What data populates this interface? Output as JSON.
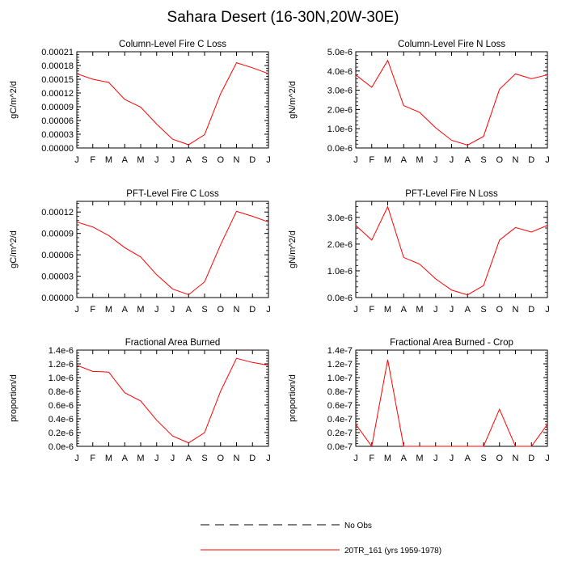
{
  "title": "Sahara Desert (16-30N,20W-30E)",
  "colors": {
    "series": "#ff0000",
    "axis": "#000000"
  },
  "legend": {
    "entries": [
      {
        "label": "No Obs",
        "style": "dashed",
        "color": "#000000"
      },
      {
        "label": "20TR_161 (yrs 1959-1978)",
        "style": "solid",
        "color": "#ff0000"
      }
    ],
    "placement": "bottom-center"
  },
  "chart_data": [
    {
      "type": "line",
      "title": "Column-Level Fire C Loss",
      "ylabel": "gC/m^2/d",
      "ylim": [
        0,
        0.00021
      ],
      "yticks": [
        0,
        3e-05,
        6e-05,
        9e-05,
        0.00012,
        0.00015,
        0.00018,
        0.00021
      ],
      "ytick_labels": [
        "0.00000",
        "0.00003",
        "0.00006",
        "0.00009",
        "0.00012",
        "0.00015",
        "0.00018",
        "0.00021"
      ],
      "categories": [
        "J",
        "F",
        "M",
        "A",
        "M",
        "J",
        "J",
        "A",
        "S",
        "O",
        "N",
        "D",
        "J"
      ],
      "series": [
        {
          "name": "20TR_161 (yrs 1959-1978)",
          "values": [
            0.000162,
            0.00015,
            0.000143,
            0.000106,
            8.9e-05,
            5.2e-05,
            1.9e-05,
            7e-06,
            2.9e-05,
            0.000118,
            0.000186,
            0.000175,
            0.000162
          ]
        }
      ]
    },
    {
      "type": "line",
      "title": "Column-Level Fire N Loss",
      "ylabel": "gN/m^2/d",
      "ylim": [
        0,
        5e-06
      ],
      "yticks": [
        0,
        1e-06,
        2e-06,
        3e-06,
        4e-06,
        5e-06
      ],
      "ytick_labels": [
        "0.0e-6",
        "1.0e-6",
        "2.0e-6",
        "3.0e-6",
        "4.0e-6",
        "5.0e-6"
      ],
      "categories": [
        "J",
        "F",
        "M",
        "A",
        "M",
        "J",
        "J",
        "A",
        "S",
        "O",
        "N",
        "D",
        "J"
      ],
      "series": [
        {
          "name": "20TR_161 (yrs 1959-1978)",
          "values": [
            3.8e-06,
            3.15e-06,
            4.55e-06,
            2.2e-06,
            1.85e-06,
            1.05e-06,
            4e-07,
            1.5e-07,
            6e-07,
            3.05e-06,
            3.85e-06,
            3.6e-06,
            3.8e-06
          ]
        }
      ]
    },
    {
      "type": "line",
      "title": "PFT-Level Fire C Loss",
      "ylabel": "gC/m^2/d",
      "ylim": [
        0,
        0.000135
      ],
      "yticks": [
        0,
        3e-05,
        6e-05,
        9e-05,
        0.00012
      ],
      "ytick_labels": [
        "0.00000",
        "0.00003",
        "0.00006",
        "0.00009",
        "0.00012"
      ],
      "categories": [
        "J",
        "F",
        "M",
        "A",
        "M",
        "J",
        "J",
        "A",
        "S",
        "O",
        "N",
        "D",
        "J"
      ],
      "series": [
        {
          "name": "20TR_161 (yrs 1959-1978)",
          "values": [
            0.000106,
            9.9e-05,
            8.7e-05,
            7e-05,
            5.7e-05,
            3.2e-05,
            1.2e-05,
            4e-06,
            2.2e-05,
            7.4e-05,
            0.000121,
            0.000114,
            0.000106
          ]
        }
      ]
    },
    {
      "type": "line",
      "title": "PFT-Level Fire N Loss",
      "ylabel": "gN/m^2/d",
      "ylim": [
        0,
        3.6e-06
      ],
      "yticks": [
        0,
        1e-06,
        2e-06,
        3e-06
      ],
      "ytick_labels": [
        "0.0e-6",
        "1.0e-6",
        "2.0e-6",
        "3.0e-6"
      ],
      "categories": [
        "J",
        "F",
        "M",
        "A",
        "M",
        "J",
        "J",
        "A",
        "S",
        "O",
        "N",
        "D",
        "J"
      ],
      "series": [
        {
          "name": "20TR_161 (yrs 1959-1978)",
          "values": [
            2.7e-06,
            2.15e-06,
            3.4e-06,
            1.5e-06,
            1.25e-06,
            7e-07,
            2.8e-07,
            1e-07,
            4.5e-07,
            2.15e-06,
            2.62e-06,
            2.45e-06,
            2.7e-06
          ]
        }
      ]
    },
    {
      "type": "line",
      "title": "Fractional Area Burned",
      "ylabel": "proportion/d",
      "ylim": [
        0,
        1.4e-06
      ],
      "yticks": [
        0,
        2e-07,
        4e-07,
        6e-07,
        8e-07,
        1e-06,
        1.2e-06,
        1.4e-06
      ],
      "ytick_labels": [
        "0.0e-6",
        "0.2e-6",
        "0.4e-6",
        "0.6e-6",
        "0.8e-6",
        "1.0e-6",
        "1.2e-6",
        "1.4e-6"
      ],
      "categories": [
        "J",
        "F",
        "M",
        "A",
        "M",
        "J",
        "J",
        "A",
        "S",
        "O",
        "N",
        "D",
        "J"
      ],
      "series": [
        {
          "name": "20TR_161 (yrs 1959-1978)",
          "values": [
            1.18e-06,
            1.09e-06,
            1.08e-06,
            7.8e-07,
            6.6e-07,
            3.8e-07,
            1.5e-07,
            5e-08,
            2e-07,
            8e-07,
            1.28e-06,
            1.22e-06,
            1.18e-06
          ]
        }
      ]
    },
    {
      "type": "line",
      "title": "Fractional Area Burned - Crop",
      "ylabel": "proportion/d",
      "ylim": [
        0,
        1.4e-07
      ],
      "yticks": [
        0,
        2e-08,
        4e-08,
        6e-08,
        8e-08,
        1e-07,
        1.2e-07,
        1.4e-07
      ],
      "ytick_labels": [
        "0.0e-7",
        "0.2e-7",
        "0.4e-7",
        "0.6e-7",
        "0.8e-7",
        "1.0e-7",
        "1.2e-7",
        "1.4e-7"
      ],
      "categories": [
        "J",
        "F",
        "M",
        "A",
        "M",
        "J",
        "J",
        "A",
        "S",
        "O",
        "N",
        "D",
        "J"
      ],
      "series": [
        {
          "name": "20TR_161 (yrs 1959-1978)",
          "values": [
            3.2e-08,
            0.0,
            1.26e-07,
            0.0,
            0.0,
            0.0,
            0.0,
            0.0,
            0.0,
            5.4e-08,
            0.0,
            0.0,
            3.2e-08
          ]
        }
      ]
    }
  ]
}
